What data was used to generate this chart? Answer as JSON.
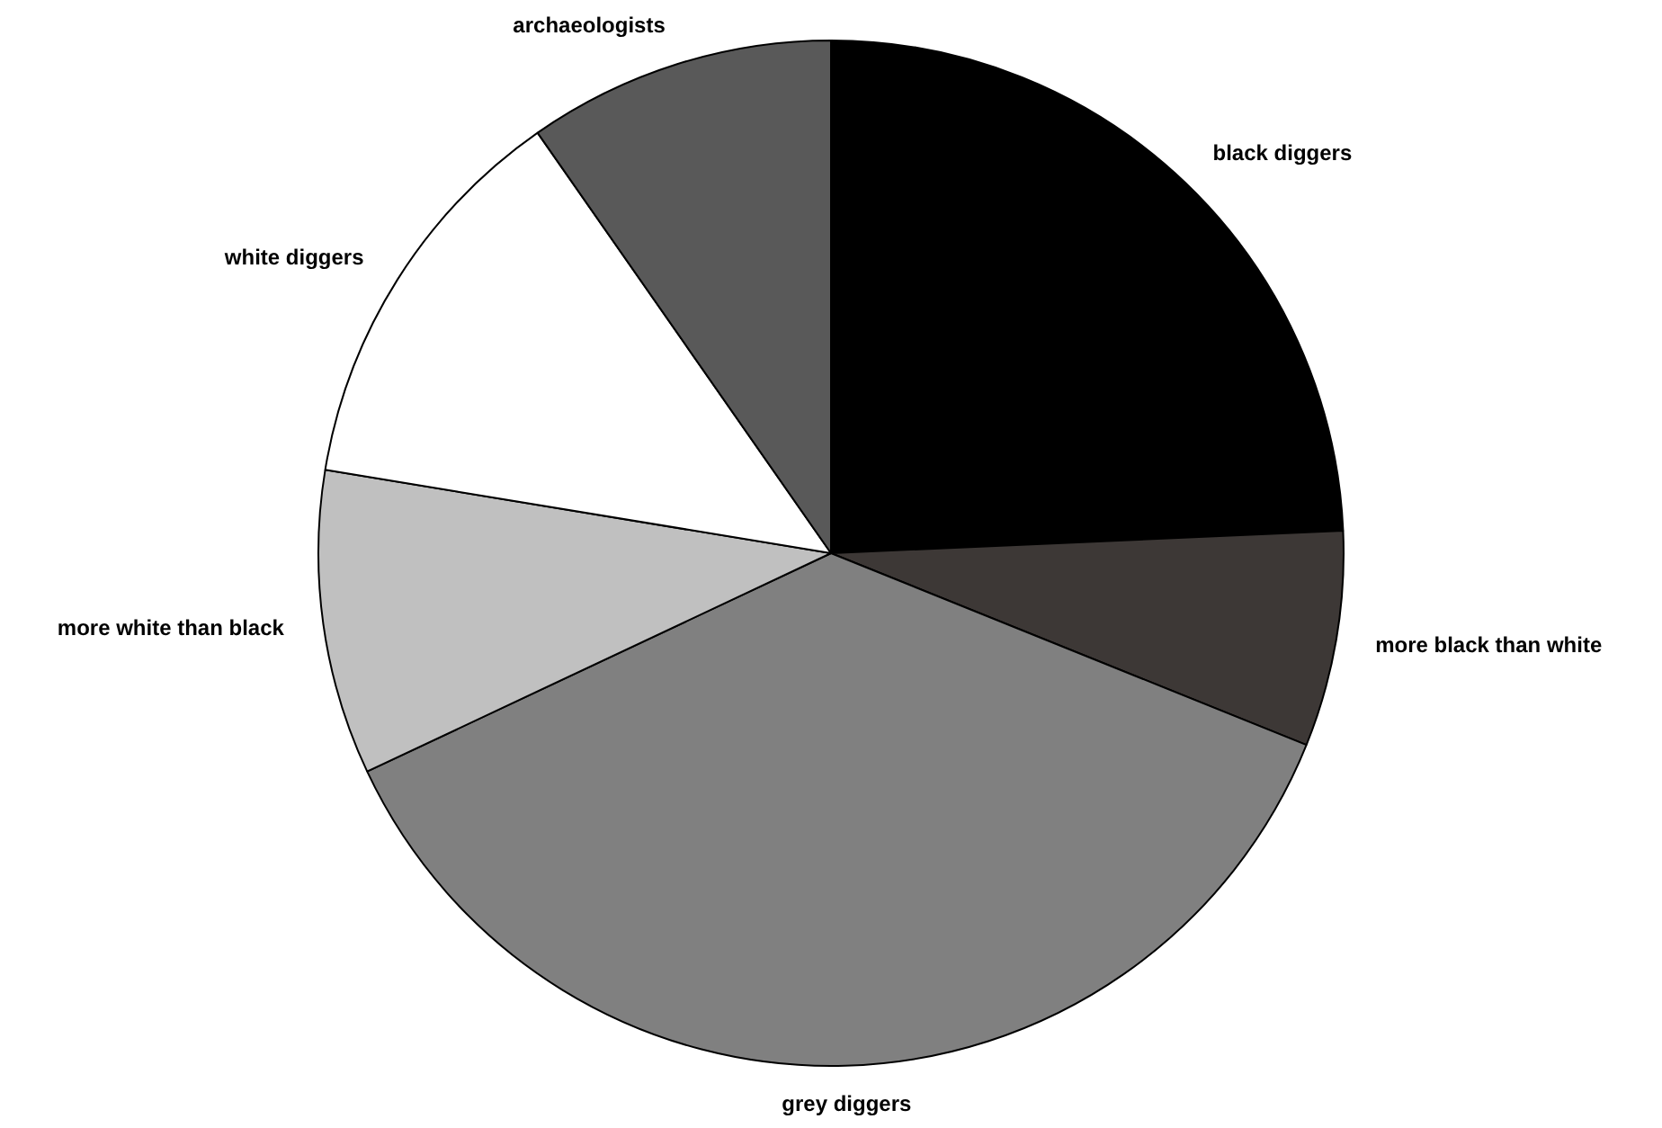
{
  "chart_data": {
    "type": "pie",
    "categories": [
      "black diggers",
      "more black than white",
      "grey diggers",
      "more white than black",
      "white diggers",
      "archaeologists"
    ],
    "values": [
      24.3,
      6.8,
      36.9,
      9.6,
      12.7,
      9.7
    ],
    "colors": [
      "#000000",
      "#3d3836",
      "#808080",
      "#c0c0c0",
      "#ffffff",
      "#595959"
    ],
    "legend": false
  }
}
